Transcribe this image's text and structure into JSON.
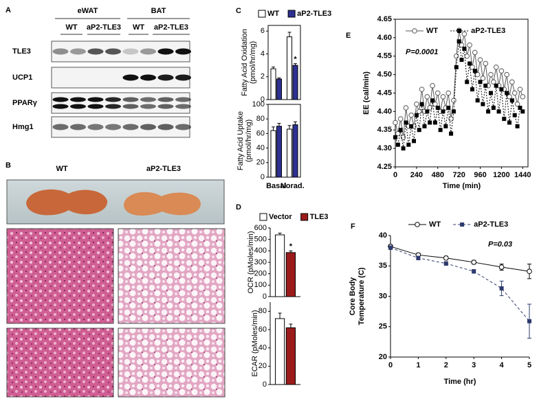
{
  "panel_labels": [
    "A",
    "B",
    "C",
    "D",
    "E",
    "F"
  ],
  "blot": {
    "groups": [
      "eWAT",
      "BAT"
    ],
    "lanes": [
      "WT",
      "aP2-TLE3",
      "WT",
      "aP2-TLE3"
    ],
    "proteins": [
      "TLE3",
      "UCP1",
      "PPARγ",
      "Hmg1"
    ]
  },
  "histology": {
    "columns": [
      "WT",
      "aP2-TLE3"
    ]
  },
  "chart_data": [
    {
      "type": "grouped_bar",
      "frame": true,
      "categories": [
        "Basal",
        "Norad."
      ],
      "series": [
        {
          "name": "WT",
          "color": "#ffffff"
        },
        {
          "name": "aP2-TLE3",
          "color": "#2e3192"
        }
      ],
      "subplots": [
        {
          "ylabel": [
            "Fatty Acid Oxidation",
            "(pmol/hr/mg)"
          ],
          "ylim": [
            0,
            6.5
          ],
          "yticks": [
            0,
            2,
            4,
            6
          ],
          "values": [
            [
              2.7,
              5.5
            ],
            [
              1.8,
              3.0
            ]
          ],
          "errors": [
            [
              0.15,
              0.4
            ],
            [
              0.1,
              0.15
            ]
          ],
          "significance": [
            [
              null,
              null
            ],
            [
              null,
              "*"
            ]
          ]
        },
        {
          "ylabel": [
            "Fatty Acid Uptake",
            "(pmol/hr/mg)"
          ],
          "ylim": [
            0,
            100
          ],
          "yticks": [
            0,
            20,
            40,
            60,
            80,
            100
          ],
          "values": [
            [
              64,
              66
            ],
            [
              70,
              72
            ]
          ],
          "errors": [
            [
              5,
              5
            ],
            [
              4,
              4
            ]
          ]
        }
      ]
    },
    {
      "type": "grouped_bar",
      "frame": false,
      "categories": [
        null
      ],
      "series": [
        {
          "name": "Vector",
          "color": "#ffffff"
        },
        {
          "name": "TLE3",
          "color": "#9b1b1b"
        }
      ],
      "subplots": [
        {
          "ylabel": [
            "OCR (pMoles/min)"
          ],
          "ylim": [
            0,
            600
          ],
          "yticks": [
            0,
            100,
            200,
            300,
            400,
            500,
            600
          ],
          "values": [
            [
              540
            ],
            [
              385
            ]
          ],
          "errors": [
            [
              15
            ],
            [
              15
            ]
          ],
          "significance": [
            [
              null
            ],
            [
              "*"
            ]
          ]
        },
        {
          "ylabel": [
            "ECAR (pMoles/min)"
          ],
          "ylim": [
            0,
            90
          ],
          "yticks": [
            0,
            20,
            40,
            60,
            80
          ],
          "values": [
            [
              72
            ],
            [
              62
            ]
          ],
          "errors": [
            [
              6
            ],
            [
              4
            ]
          ]
        }
      ]
    },
    {
      "type": "line",
      "frame": true,
      "xlabel": "Time (min)",
      "ylabel": [
        "EE (cal/min)"
      ],
      "annotation": "P=0.0001",
      "x": [
        0,
        30,
        60,
        90,
        120,
        150,
        180,
        210,
        240,
        270,
        300,
        330,
        360,
        390,
        420,
        450,
        480,
        510,
        540,
        570,
        600,
        630,
        660,
        690,
        720,
        750,
        780,
        810,
        840,
        870,
        900,
        930,
        960,
        990,
        1020,
        1050,
        1080,
        1110,
        1140,
        1170,
        1200,
        1230,
        1260,
        1290,
        1320,
        1350,
        1380,
        1410,
        1440
      ],
      "xlim": [
        0,
        1500
      ],
      "xticks": [
        0,
        240,
        480,
        720,
        960,
        1200,
        1440
      ],
      "ylim": [
        4.25,
        4.65
      ],
      "yticks": [
        4.25,
        {
          "value": 4.3,
          "label": "4.30"
        },
        4.35,
        {
          "value": 4.4,
          "label": "4.40"
        },
        4.45,
        {
          "value": 4.5,
          "label": "4.50"
        },
        4.55,
        {
          "value": 4.6,
          "label": "4.60"
        },
        4.65
      ],
      "series": [
        {
          "name": "WT",
          "color": "#555555",
          "marker": "circle",
          "dash": "solid",
          "values": [
            4.37,
            4.34,
            4.38,
            4.33,
            4.41,
            4.36,
            4.39,
            4.36,
            4.42,
            4.4,
            4.46,
            4.4,
            4.44,
            4.41,
            4.47,
            4.42,
            4.45,
            4.4,
            4.44,
            4.41,
            4.45,
            4.38,
            4.43,
            4.55,
            4.62,
            4.58,
            4.61,
            4.55,
            4.58,
            4.52,
            4.56,
            4.5,
            4.54,
            4.49,
            4.53,
            4.47,
            4.5,
            4.48,
            4.52,
            4.47,
            4.51,
            4.46,
            4.5,
            4.44,
            4.48,
            4.45,
            4.42,
            4.46,
            4.44
          ]
        },
        {
          "name": "aP2-TLE3",
          "color": "#000000",
          "marker": "square",
          "dash": "dotted",
          "values": [
            4.33,
            4.31,
            4.35,
            4.3,
            4.37,
            4.31,
            4.36,
            4.32,
            4.39,
            4.35,
            4.42,
            4.36,
            4.4,
            4.37,
            4.43,
            4.37,
            4.41,
            4.35,
            4.4,
            4.36,
            4.41,
            4.34,
            4.4,
            4.52,
            4.59,
            4.54,
            4.57,
            4.48,
            4.53,
            4.46,
            4.51,
            4.43,
            4.48,
            4.42,
            4.47,
            4.4,
            4.45,
            4.41,
            4.47,
            4.4,
            4.46,
            4.38,
            4.45,
            4.37,
            4.43,
            4.39,
            4.36,
            4.41,
            4.4
          ]
        }
      ]
    },
    {
      "type": "line",
      "frame": false,
      "xlabel": "Time (hr)",
      "ylabel": [
        "Core Body",
        "Temperature (C)"
      ],
      "annotation": "P=0.03",
      "x": [
        0,
        1,
        2,
        3,
        4,
        5
      ],
      "xlim": [
        0,
        5
      ],
      "xticks": [
        0,
        1,
        2,
        3,
        4,
        5
      ],
      "ylim": [
        20,
        40
      ],
      "yticks": [
        20,
        25,
        30,
        35,
        40
      ],
      "series": [
        {
          "name": "WT",
          "color": "#000000",
          "marker": "circle",
          "dash": "solid",
          "values": [
            38.2,
            36.8,
            36.3,
            35.6,
            34.8,
            34.1
          ],
          "errors": [
            0.3,
            0.3,
            0.3,
            0.3,
            0.5,
            1.2
          ]
        },
        {
          "name": "aP2-TLE3",
          "color": "#2e3a6e",
          "marker": "square",
          "dash": "dashed",
          "values": [
            38.0,
            36.3,
            35.4,
            34.1,
            31.3,
            25.9
          ],
          "errors": [
            0.3,
            0.3,
            0.3,
            0.3,
            1.2,
            2.8
          ]
        }
      ]
    }
  ]
}
